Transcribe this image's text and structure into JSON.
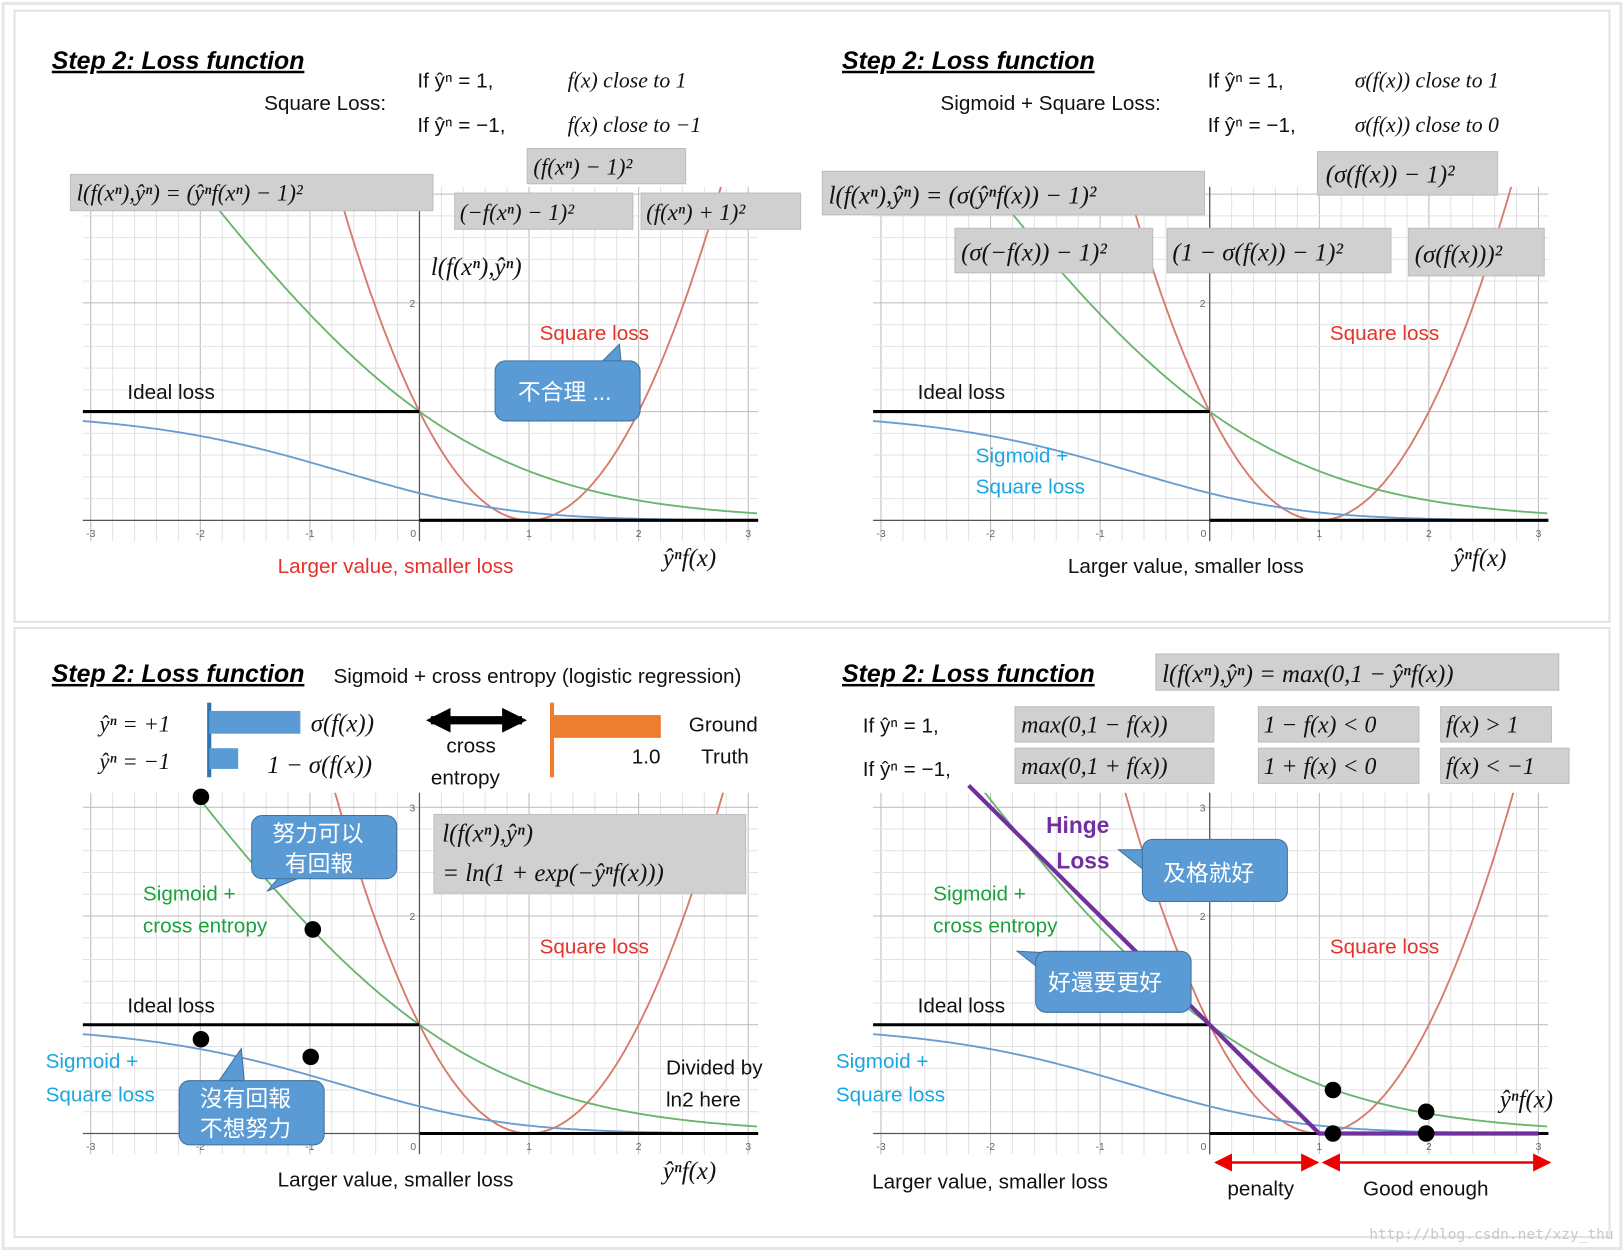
{
  "panels": [
    {
      "title": "Step 2: Loss function",
      "texts": [
        "Square Loss:",
        "If ŷⁿ = 1,",
        "f(x) close to 1",
        "If ŷⁿ = −1,",
        "f(x) close to −1",
        "(f(xⁿ) − 1)²",
        "l(f(xⁿ),ŷⁿ) = (ŷⁿf(xⁿ) − 1)²",
        "(−f(xⁿ) − 1)²",
        "(f(xⁿ) + 1)²",
        "l(f(xⁿ),ŷⁿ)",
        "Square loss",
        "不合理 ...",
        "Ideal loss",
        "Larger value, smaller loss",
        "ŷⁿf(x)"
      ],
      "x_ticks": [
        -3,
        -2,
        -1,
        0,
        1,
        2,
        3
      ],
      "y_ticks": [
        2
      ]
    },
    {
      "title": "Step 2: Loss function",
      "texts": [
        "Sigmoid + Square Loss:",
        "If ŷⁿ = 1,",
        "σ(f(x)) close to 1",
        "If ŷⁿ = −1,",
        "σ(f(x)) close to 0",
        "(σ(f(x)) − 1)²",
        "l(f(xⁿ),ŷⁿ) = (σ(ŷⁿf(x)) − 1)²",
        "(σ(−f(x)) − 1)²",
        "(1 − σ(f(x)) − 1)²",
        "(σ(f(x)))²",
        "Square loss",
        "Ideal loss",
        "Sigmoid +",
        "Square loss",
        "Larger value, smaller loss",
        "ŷⁿf(x)"
      ],
      "x_ticks": [
        -3,
        -2,
        -1,
        0,
        1,
        2,
        3
      ],
      "y_ticks": [
        2
      ]
    },
    {
      "title": "Step 2: Loss function",
      "texts": [
        "Sigmoid + cross entropy (logistic regression)",
        "ŷⁿ = +1",
        "ŷⁿ = −1",
        "σ(f(x))",
        "1 − σ(f(x))",
        "cross",
        "entropy",
        "1.0",
        "Ground",
        "Truth",
        "l(f(xⁿ),ŷⁿ)",
        "= ln(1 + exp(−ŷⁿf(x)))",
        "努力可以",
        "有回報",
        "Sigmoid +",
        "cross entropy",
        "Square loss",
        "Ideal loss",
        "Sigmoid +",
        "Square loss",
        "沒有回報",
        "不想努力",
        "Divided by",
        "ln2 here",
        "Larger value, smaller loss",
        "ŷⁿf(x)"
      ],
      "x_ticks": [
        -3,
        -2,
        -1,
        0,
        1,
        2,
        3
      ],
      "y_ticks": [
        3,
        2
      ]
    },
    {
      "title": "Step 2: Loss function",
      "texts": [
        "l(f(xⁿ),ŷⁿ) = max(0,1 − ŷⁿf(x))",
        "If ŷⁿ = 1,",
        "If ŷⁿ = −1,",
        "max(0,1 − f(x))",
        "max(0,1 + f(x))",
        "1 − f(x) < 0",
        "1 + f(x) < 0",
        "f(x) > 1",
        "f(x) < −1",
        "Hinge",
        "Loss",
        "及格就好",
        "Sigmoid +",
        "cross entropy",
        "好還要更好",
        "Square loss",
        "Ideal loss",
        "Sigmoid +",
        "Square loss",
        "ŷⁿf(x)",
        "Larger value, smaller loss",
        "penalty",
        "Good enough"
      ],
      "x_ticks": [
        -3,
        -2,
        -1,
        0,
        1,
        2,
        3
      ],
      "y_ticks": [
        3,
        2
      ]
    }
  ],
  "watermark": "http://blog.csdn.net/xzy_thu"
}
